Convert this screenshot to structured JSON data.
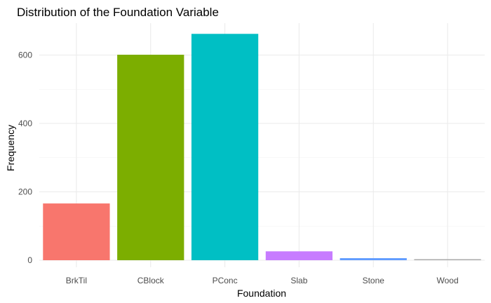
{
  "chart_data": {
    "type": "bar",
    "title": "Distribution of the Foundation Variable",
    "xlabel": "Foundation",
    "ylabel": "Frequency",
    "categories": [
      "BrkTil",
      "CBlock",
      "PConc",
      "Slab",
      "Stone",
      "Wood"
    ],
    "values": [
      166,
      601,
      662,
      26,
      6,
      3
    ],
    "colors": [
      "#F8766D",
      "#7CAE00",
      "#00BFC4",
      "#C77CFF",
      "#619CFF",
      "#A9A9A9"
    ],
    "ylim": [
      0,
      700
    ],
    "yticks": [
      0,
      200,
      400,
      600
    ],
    "grid": true,
    "legend": "none"
  }
}
